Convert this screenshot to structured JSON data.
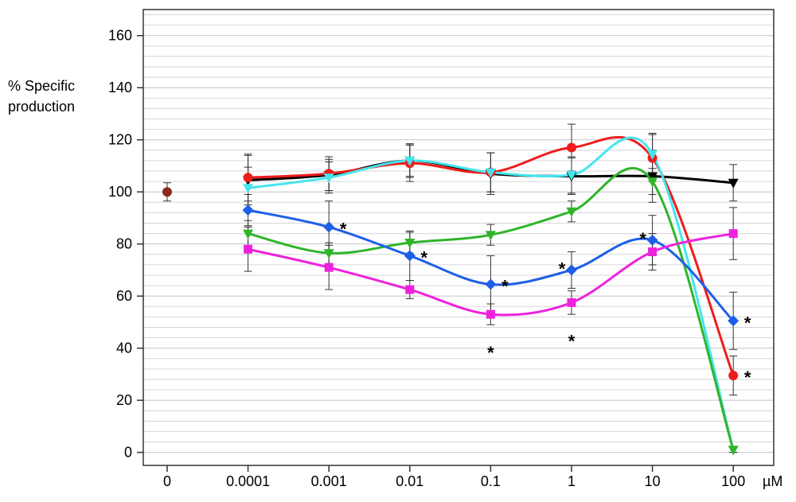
{
  "chart_data": {
    "type": "line",
    "title": "",
    "ylabel": [
      "% Specific",
      "production"
    ],
    "xlabel": "µM",
    "ylim": [
      -5,
      170
    ],
    "y_ticks": [
      0,
      20,
      40,
      60,
      80,
      100,
      120,
      140,
      160
    ],
    "grid": "horizontal",
    "categories": [
      "0",
      "0.0001",
      "0.001",
      "0.01",
      "0.1",
      "1",
      "10",
      "100"
    ],
    "control": {
      "x": "0",
      "y": 100,
      "err": 3.5,
      "color": "#8b2a1a"
    },
    "series": [
      {
        "color": "#000000",
        "marker": "triangle-down",
        "x": [
          "0.0001",
          "0.001",
          "0.01",
          "0.1",
          "1",
          "10",
          "100"
        ],
        "y": [
          104.5,
          106.5,
          112,
          107,
          106,
          106,
          103.5
        ],
        "err": [
          9.5,
          6,
          6.5,
          8,
          7,
          10,
          7
        ]
      },
      {
        "color": "#ee1c1c",
        "marker": "circle",
        "x": [
          "0.0001",
          "0.001",
          "0.01",
          "0.1",
          "1",
          "10",
          "100"
        ],
        "y": [
          105.5,
          107,
          111,
          107.5,
          117,
          113,
          29.5
        ],
        "err": [
          9,
          6.5,
          7,
          7.5,
          9,
          9,
          7.5
        ]
      },
      {
        "color": "#44e6ee",
        "marker": "triangle-down",
        "x": [
          "0.0001",
          "0.001",
          "0.01",
          "0.1",
          "1",
          "10",
          "100"
        ],
        "y": [
          101.5,
          105.5,
          112,
          107.5,
          106.5,
          114.5,
          1
        ],
        "err": [
          8,
          6,
          6,
          7.5,
          7,
          8,
          1
        ]
      },
      {
        "color": "#2fb52a",
        "marker": "triangle-down",
        "x": [
          "0.0001",
          "0.001",
          "0.01",
          "0.1",
          "1",
          "10",
          "100"
        ],
        "y": [
          84,
          76.5,
          80.5,
          83.5,
          92.5,
          104,
          1
        ],
        "err": [
          5,
          4,
          4,
          4,
          4,
          5,
          1
        ]
      },
      {
        "color": "#1f5fe8",
        "marker": "diamond",
        "x": [
          "0.0001",
          "0.001",
          "0.01",
          "0.1",
          "1",
          "10",
          "100"
        ],
        "y": [
          93,
          86.5,
          75.5,
          64.5,
          70,
          81.5,
          50.5
        ],
        "err": [
          6,
          10,
          9.5,
          11,
          7,
          9.5,
          11
        ]
      },
      {
        "color": "#ee22dd",
        "marker": "square",
        "x": [
          "0.0001",
          "0.001",
          "0.01",
          "0.1",
          "1",
          "10",
          "100"
        ],
        "y": [
          78,
          71,
          62.5,
          53,
          57.5,
          77,
          84
        ],
        "err": [
          8.5,
          8.5,
          3.5,
          4,
          4.5,
          7,
          10
        ]
      }
    ],
    "annotations": [
      {
        "text": "*",
        "x": "0.001",
        "y": 86.5,
        "side": "right"
      },
      {
        "text": "*",
        "x": "0.01",
        "y": 75.5,
        "side": "right"
      },
      {
        "text": "*",
        "x": "0.1",
        "y": 64.5,
        "side": "right"
      },
      {
        "text": "*",
        "x": "0.1",
        "y": 53,
        "side": "below"
      },
      {
        "text": "*",
        "x": "1",
        "y": 70,
        "side": "left"
      },
      {
        "text": "*",
        "x": "1",
        "y": 57.5,
        "side": "below"
      },
      {
        "text": "*",
        "x": "10",
        "y": 81.5,
        "side": "left"
      },
      {
        "text": "*",
        "x": "100",
        "y": 50.5,
        "side": "right"
      },
      {
        "text": "*",
        "x": "100",
        "y": 29.5,
        "side": "right"
      }
    ]
  }
}
